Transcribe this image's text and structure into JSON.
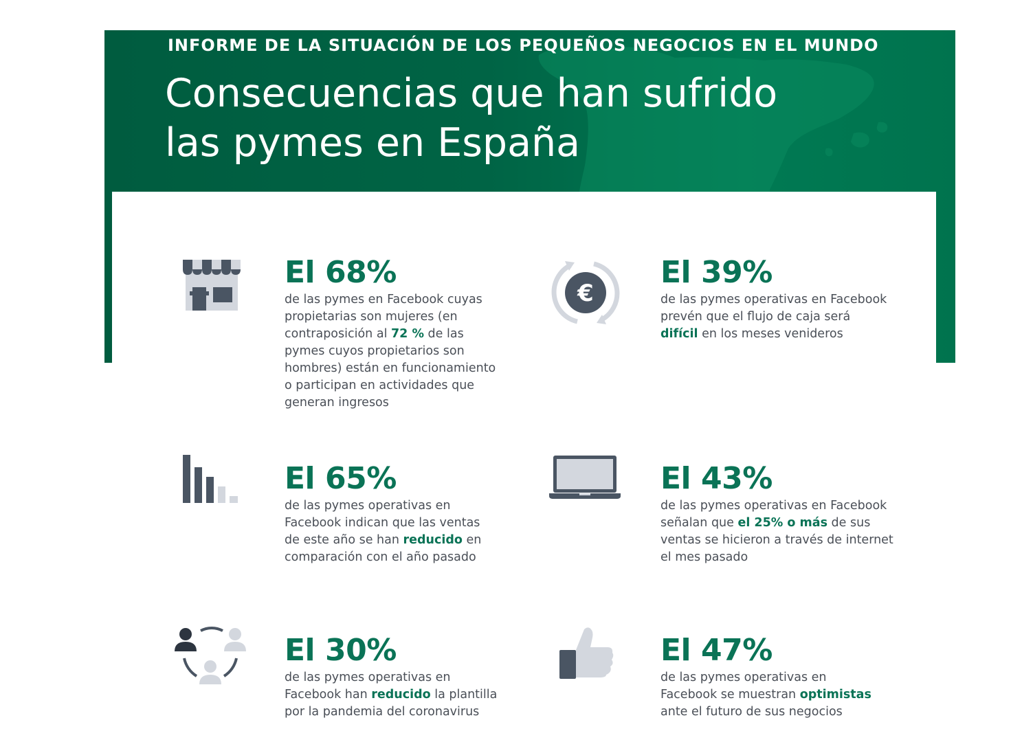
{
  "header": {
    "kicker": "INFORME DE LA SITUACIÓN DE LOS PEQUEÑOS NEGOCIOS EN EL MUNDO",
    "title_line1": "Consecuencias que han sufrido",
    "title_line2": "las pymes en España"
  },
  "colors": {
    "banner": "#006445",
    "accent": "#0a7356",
    "text": "#4a4f57",
    "icon_dark": "#4a5563",
    "icon_light": "#d3d7de"
  },
  "stats": [
    {
      "icon": "storefront-icon",
      "percent": "El 68%",
      "parts": [
        "de las pymes en Facebook cuyas propietarias son mujeres (en contraposición al ",
        "72 %",
        " de las pymes cuyos propietarios son hombres) están en funcionamiento o participan en actividades que generan ingresos"
      ]
    },
    {
      "icon": "euro-cycle-icon",
      "percent": "El 39%",
      "parts": [
        "de las pymes operativas en Facebook prevén que el flujo de caja será ",
        "difícil",
        " en los meses venideros"
      ]
    },
    {
      "icon": "declining-bars-icon",
      "percent": "El 65%",
      "parts": [
        "de las pymes operativas en Facebook indican que las ventas de este año se han ",
        "reducido",
        " en comparación con el año pasado"
      ]
    },
    {
      "icon": "laptop-icon",
      "percent": "El 43%",
      "parts": [
        "de las pymes operativas en Facebook señalan que ",
        "el 25% o más",
        " de sus ventas se hicieron a través de internet el mes pasado"
      ]
    },
    {
      "icon": "people-cycle-icon",
      "percent": "El 30%",
      "parts": [
        "de las pymes operativas en Facebook han ",
        "reducido",
        " la plantilla por la pandemia del coronavirus"
      ]
    },
    {
      "icon": "thumbs-up-icon",
      "percent": "El 47%",
      "parts": [
        "de las pymes operativas en Facebook se muestran ",
        "optimistas",
        " ante el futuro de sus negocios"
      ]
    }
  ]
}
